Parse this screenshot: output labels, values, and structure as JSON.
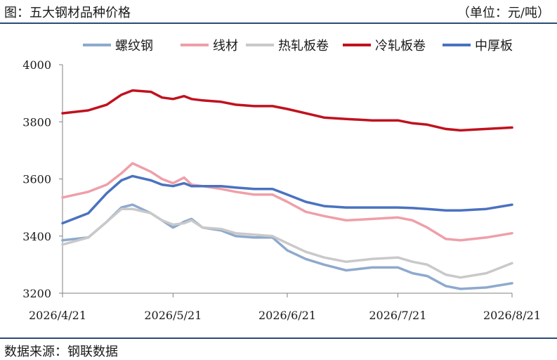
{
  "header": {
    "title": "图：五大钢材品种价格",
    "unit": "（单位：元/吨）"
  },
  "footer": {
    "source": "数据来源：钢联数据"
  },
  "chart_data": {
    "type": "line",
    "x_dates": [
      "2026-04-21",
      "2026-04-28",
      "2026-05-03",
      "2026-05-07",
      "2026-05-10",
      "2026-05-15",
      "2026-05-18",
      "2026-05-21",
      "2026-05-24",
      "2026-05-26",
      "2026-05-29",
      "2026-06-03",
      "2026-06-07",
      "2026-06-12",
      "2026-06-17",
      "2026-06-21",
      "2026-06-26",
      "2026-07-01",
      "2026-07-07",
      "2026-07-14",
      "2026-07-21",
      "2026-07-25",
      "2026-07-29",
      "2026-08-03",
      "2026-08-07",
      "2026-08-14",
      "2026-08-21"
    ],
    "xticks": [
      "2026/4/21",
      "2026/5/21",
      "2026/6/21",
      "2026/7/21",
      "2026/8/21"
    ],
    "ylim": [
      3200,
      4000
    ],
    "yticks": [
      3200,
      3400,
      3600,
      3800,
      4000
    ],
    "legend_position": "top",
    "series": [
      {
        "name": "螺纹钢",
        "color": "#8ea9cd",
        "values": [
          3385,
          3395,
          3450,
          3500,
          3510,
          3480,
          3455,
          3430,
          3450,
          3460,
          3430,
          3420,
          3400,
          3395,
          3395,
          3350,
          3320,
          3300,
          3280,
          3290,
          3290,
          3270,
          3260,
          3225,
          3215,
          3220,
          3235
        ]
      },
      {
        "name": "线材",
        "color": "#ef9fa8",
        "values": [
          3535,
          3555,
          3580,
          3620,
          3655,
          3625,
          3600,
          3585,
          3605,
          3580,
          3575,
          3565,
          3555,
          3545,
          3545,
          3520,
          3485,
          3470,
          3455,
          3460,
          3465,
          3455,
          3430,
          3390,
          3385,
          3395,
          3410
        ]
      },
      {
        "name": "热轧板卷",
        "color": "#c9c9c9",
        "values": [
          3370,
          3395,
          3450,
          3495,
          3495,
          3480,
          3455,
          3440,
          3445,
          3455,
          3430,
          3425,
          3410,
          3405,
          3400,
          3375,
          3345,
          3325,
          3310,
          3320,
          3325,
          3310,
          3300,
          3265,
          3255,
          3270,
          3305
        ]
      },
      {
        "name": "冷轧板卷",
        "color": "#c0121e",
        "values": [
          3830,
          3840,
          3860,
          3895,
          3910,
          3905,
          3885,
          3880,
          3890,
          3880,
          3875,
          3870,
          3860,
          3855,
          3855,
          3845,
          3830,
          3815,
          3810,
          3805,
          3805,
          3795,
          3790,
          3775,
          3770,
          3775,
          3780
        ]
      },
      {
        "name": "中厚板",
        "color": "#4a72c0",
        "values": [
          3445,
          3480,
          3550,
          3595,
          3610,
          3595,
          3580,
          3575,
          3585,
          3575,
          3575,
          3575,
          3570,
          3565,
          3565,
          3545,
          3520,
          3505,
          3500,
          3500,
          3500,
          3498,
          3495,
          3490,
          3490,
          3495,
          3510
        ]
      }
    ]
  }
}
